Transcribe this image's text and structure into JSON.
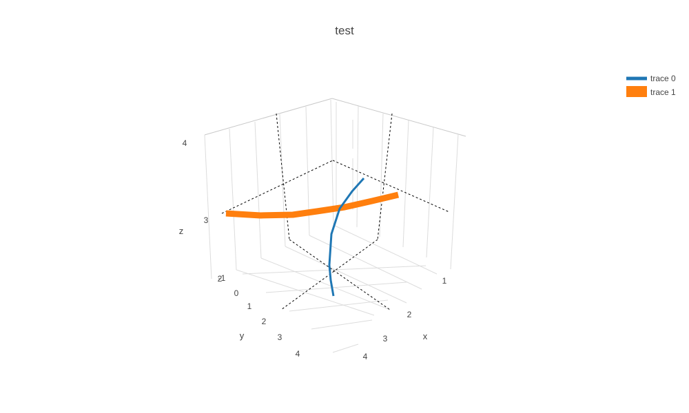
{
  "chart_data": {
    "type": "line",
    "title": "test",
    "axes": {
      "x": {
        "label": "x",
        "ticks": [
          1,
          2,
          3,
          4
        ]
      },
      "y": {
        "label": "y",
        "ticks": [
          -1,
          0,
          1,
          2,
          3,
          4
        ]
      },
      "z": {
        "label": "z",
        "ticks": [
          2,
          3,
          4
        ]
      }
    },
    "series": [
      {
        "name": "trace 0",
        "color": "#1f77b4",
        "line": "thin 3D line rising from z≈2 near the floor to z≈3.3"
      },
      {
        "name": "trace 1",
        "color": "#ff7f0e",
        "line": "thick 3D line at z≈3 sweeping across the scene"
      }
    ],
    "legend": {
      "placement": "top-right",
      "entries": [
        "trace 0",
        "trace 1"
      ]
    },
    "grid": true
  }
}
